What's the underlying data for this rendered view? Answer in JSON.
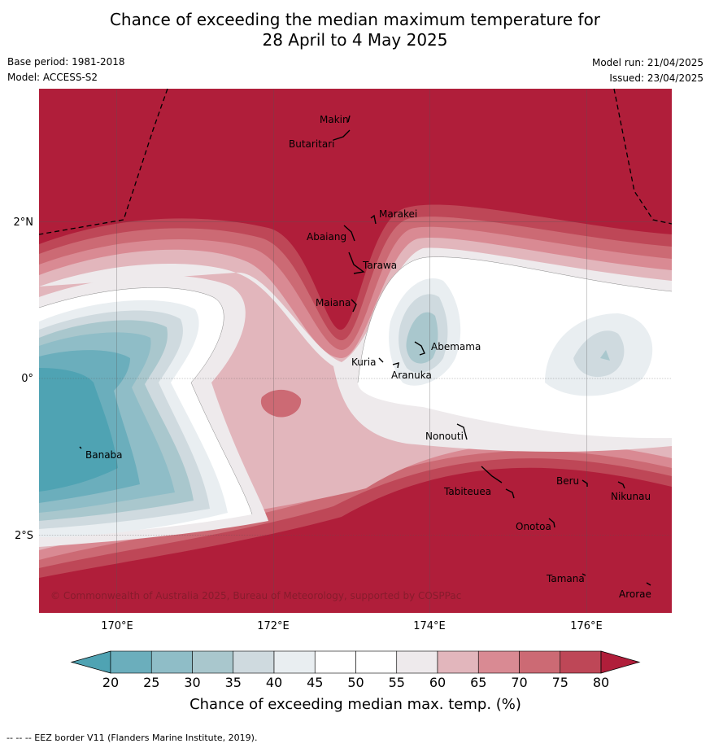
{
  "header": {
    "title_line1": "Chance of exceeding the median maximum temperature for",
    "title_line2": "28 April to 4 May 2025",
    "base_period": "Base period: 1981-2018",
    "model": "Model: ACCESS-S2",
    "model_run": "Model run: 21/04/2025",
    "issued": "Issued: 23/04/2025"
  },
  "map": {
    "lon_ticks": [
      "170°E",
      "172°E",
      "174°E",
      "176°E"
    ],
    "lat_ticks": [
      "2°N",
      "0°",
      "2°S"
    ],
    "places": [
      {
        "name": "Makin"
      },
      {
        "name": "Butaritari"
      },
      {
        "name": "Marakei"
      },
      {
        "name": "Abaiang"
      },
      {
        "name": "Tarawa"
      },
      {
        "name": "Maiana"
      },
      {
        "name": "Abemama"
      },
      {
        "name": "Kuria"
      },
      {
        "name": "Aranuka"
      },
      {
        "name": "Banaba"
      },
      {
        "name": "Nonouti"
      },
      {
        "name": "Tabiteuea"
      },
      {
        "name": "Beru"
      },
      {
        "name": "Nikunau"
      },
      {
        "name": "Onotoa"
      },
      {
        "name": "Tamana"
      },
      {
        "name": "Arorae"
      }
    ],
    "copyright": "© Commonwealth of Australia 2025, Bureau of Meteorology, supported by COSPPac"
  },
  "colorbar": {
    "labels": [
      "20",
      "25",
      "30",
      "35",
      "40",
      "45",
      "50",
      "55",
      "60",
      "65",
      "70",
      "75",
      "80"
    ],
    "colors": [
      "#4fa3b3",
      "#6baebc",
      "#8fbdc7",
      "#a9c7cd",
      "#cfdadf",
      "#e9eef1",
      "#ffffff",
      "#ffffff",
      "#eeeaec",
      "#e2b6bc",
      "#d98a93",
      "#cc6a74",
      "#be4757",
      "#b01e3a"
    ],
    "title": "Chance of exceeding median max. temp. (%)"
  },
  "footer": {
    "eez_note": "--  --  -- EEZ border V11 (Flanders Marine Institute, 2019)."
  }
}
